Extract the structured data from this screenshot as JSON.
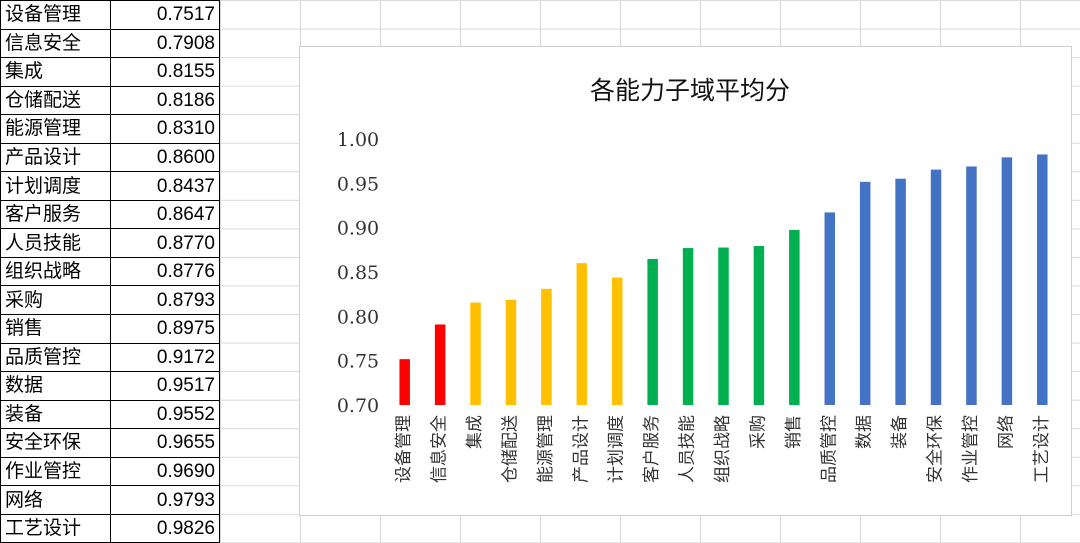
{
  "table": {
    "rows": [
      {
        "name": "设备管理",
        "value": "0.7517"
      },
      {
        "name": "信息安全",
        "value": "0.7908"
      },
      {
        "name": "集成",
        "value": "0.8155"
      },
      {
        "name": "仓储配送",
        "value": "0.8186"
      },
      {
        "name": "能源管理",
        "value": "0.8310"
      },
      {
        "name": "产品设计",
        "value": "0.8600"
      },
      {
        "name": "计划调度",
        "value": "0.8437"
      },
      {
        "name": "客户服务",
        "value": "0.8647"
      },
      {
        "name": "人员技能",
        "value": "0.8770"
      },
      {
        "name": "组织战略",
        "value": "0.8776"
      },
      {
        "name": "采购",
        "value": "0.8793"
      },
      {
        "name": "销售",
        "value": "0.8975"
      },
      {
        "name": "品质管控",
        "value": "0.9172"
      },
      {
        "name": "数据",
        "value": "0.9517"
      },
      {
        "name": "装备",
        "value": "0.9552"
      },
      {
        "name": "安全环保",
        "value": "0.9655"
      },
      {
        "name": "作业管控",
        "value": "0.9690"
      },
      {
        "name": "网络",
        "value": "0.9793"
      },
      {
        "name": "工艺设计",
        "value": "0.9826"
      }
    ]
  },
  "chart_data": {
    "type": "bar",
    "title": "各能力子域平均分",
    "categories": [
      "设备管理",
      "信息安全",
      "集成",
      "仓储配送",
      "能源管理",
      "产品设计",
      "计划调度",
      "客户服务",
      "人员技能",
      "组织战略",
      "采购",
      "销售",
      "品质管控",
      "数据",
      "装备",
      "安全环保",
      "作业管控",
      "网络",
      "工艺设计"
    ],
    "values": [
      0.7517,
      0.7908,
      0.8155,
      0.8186,
      0.831,
      0.86,
      0.8437,
      0.8647,
      0.877,
      0.8776,
      0.8793,
      0.8975,
      0.9172,
      0.9517,
      0.9552,
      0.9655,
      0.969,
      0.9793,
      0.9826
    ],
    "bar_colors": [
      "#ff0000",
      "#ff0000",
      "#ffc000",
      "#ffc000",
      "#ffc000",
      "#ffc000",
      "#ffc000",
      "#00b050",
      "#00b050",
      "#00b050",
      "#00b050",
      "#00b050",
      "#4472c4",
      "#4472c4",
      "#4472c4",
      "#4472c4",
      "#4472c4",
      "#4472c4",
      "#4472c4"
    ],
    "ylim": [
      0.7,
      1.0
    ],
    "yticks": [
      "0.70",
      "0.75",
      "0.80",
      "0.85",
      "0.90",
      "0.95",
      "1.00"
    ],
    "grid": false,
    "legend": "none"
  }
}
